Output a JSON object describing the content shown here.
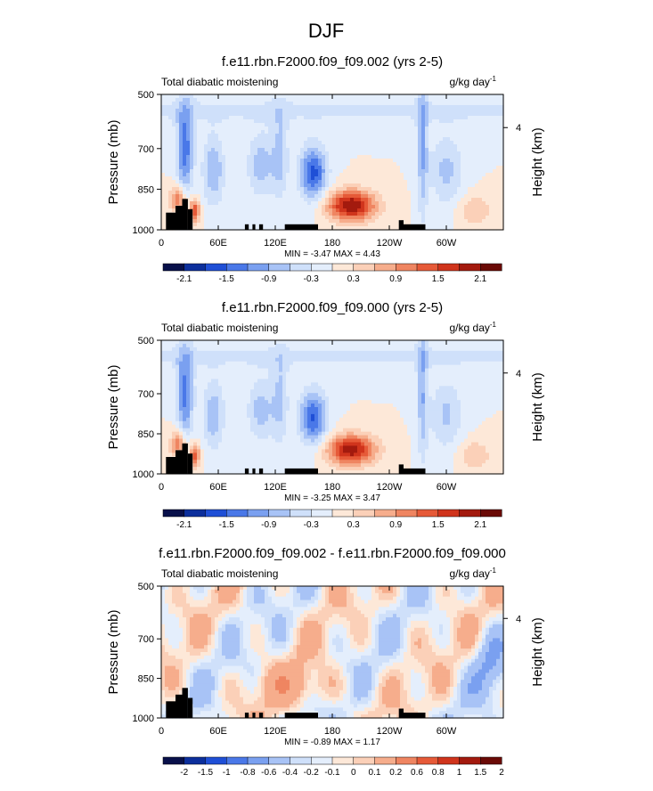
{
  "figure_title": "DJF",
  "chart_data": [
    {
      "type": "heatmap",
      "title": "f.e11.rbn.F2000.f09_f09.002 (yrs 2-5)",
      "subtitle_left": "Total diabatic moistening",
      "units": "g/kg day",
      "units_sup": "-1",
      "ylabel": "Pressure (mb)",
      "ylabel_right": "Height (km)",
      "y_ticks": [
        500,
        700,
        850,
        1000
      ],
      "y_ticks_right": [
        4
      ],
      "ylim": [
        1000,
        500
      ],
      "x_ticks": [
        "0",
        "60E",
        "120E",
        "180",
        "120W",
        "60W"
      ],
      "xlim": [
        0,
        360
      ],
      "stats": "MIN = -3.47  MAX =  4.43",
      "colorbar_labels": [
        "-2.1",
        "-1.5",
        "-0.9",
        "-0.3",
        "0.3",
        "0.9",
        "1.5",
        "2.1"
      ],
      "scale": 1.0
    },
    {
      "type": "heatmap",
      "title": "f.e11.rbn.F2000.f09_f09.000 (yrs 2-5)",
      "subtitle_left": "Total diabatic moistening",
      "units": "g/kg day",
      "units_sup": "-1",
      "ylabel": "Pressure (mb)",
      "ylabel_right": "Height (km)",
      "y_ticks": [
        500,
        700,
        850,
        1000
      ],
      "y_ticks_right": [
        4
      ],
      "ylim": [
        1000,
        500
      ],
      "x_ticks": [
        "0",
        "60E",
        "120E",
        "180",
        "120W",
        "60W"
      ],
      "xlim": [
        0,
        360
      ],
      "stats": "MIN = -3.25  MAX =  3.47",
      "colorbar_labels": [
        "-2.1",
        "-1.5",
        "-0.9",
        "-0.3",
        "0.3",
        "0.9",
        "1.5",
        "2.1"
      ],
      "scale": 0.95
    },
    {
      "type": "heatmap",
      "title": "f.e11.rbn.F2000.f09_f09.002 - f.e11.rbn.F2000.f09_f09.000",
      "subtitle_left": "Total diabatic moistening",
      "units": "g/kg day",
      "units_sup": "-1",
      "ylabel": "Pressure (mb)",
      "ylabel_right": "Height (km)",
      "y_ticks": [
        500,
        700,
        850,
        1000
      ],
      "y_ticks_right": [
        4
      ],
      "ylim": [
        1000,
        500
      ],
      "x_ticks": [
        "0",
        "60E",
        "120E",
        "180",
        "120W",
        "60W"
      ],
      "xlim": [
        0,
        360
      ],
      "stats": "MIN = -0.89  MAX =  1.17",
      "colorbar_labels": [
        "-2",
        "-1.5",
        "-1",
        "-0.8",
        "-0.6",
        "-0.4",
        "-0.2",
        "-0.1",
        "0",
        "0.1",
        "0.2",
        "0.6",
        "0.8",
        "1",
        "1.5",
        "2"
      ],
      "scale": 0.3
    }
  ],
  "colors": {
    "palette": [
      "#08104a",
      "#0c2f9c",
      "#1f4fd6",
      "#4a78e8",
      "#7aa0f0",
      "#a8c3f6",
      "#cfe0fa",
      "#e4eefc",
      "#fde8d8",
      "#fbd0b8",
      "#f6ad8c",
      "#ef8561",
      "#e65a38",
      "#d0341c",
      "#a31a0e",
      "#6a0a06"
    ],
    "background": "#ffffff",
    "terrain": "#000000"
  }
}
